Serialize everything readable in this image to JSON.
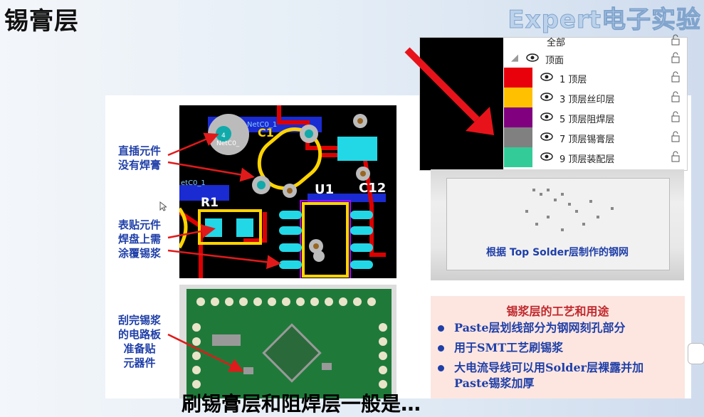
{
  "page_title": "锡膏层",
  "logo_text": "Expert电子实验",
  "slide": {
    "labels": {
      "through_hole": [
        "直插元件",
        "没有焊膏"
      ],
      "smd": [
        "表贴元件",
        "焊盘上需",
        "涂覆锡浆"
      ],
      "pcb_ready": [
        "刮完锡浆",
        "的电路板",
        "准备贴",
        "元器件"
      ]
    },
    "pcb_text": {
      "c1": "C1",
      "netc0_a": "NetC0_1",
      "netc0_b": "etC0_1",
      "pad_num": "4",
      "pad_net": "NetC0_",
      "r1": "R1",
      "u1": "U1",
      "c12": "C12"
    },
    "stencil_caption": "根据 Top Solder层制作的钢网",
    "process": {
      "title": "锡浆层的工艺和用途",
      "bullets": [
        "Paste层划线部分为钢网刻孔部分",
        "用于SMT工艺刷锡浆",
        "大电流导线可以用Solder层裸露并加Paste锡浆加厚"
      ]
    },
    "bottom_text": "刷锡膏层和阻焊层一般是…"
  },
  "layer_panel": {
    "all": "全部",
    "top_face": "顶面",
    "layers": [
      {
        "name": "1 顶层",
        "color": "#e8000b"
      },
      {
        "name": "3 顶层丝印层",
        "color": "#ffc000"
      },
      {
        "name": "5 顶层阻焊层",
        "color": "#800080"
      },
      {
        "name": "7 顶层锡膏层",
        "color": "#808080"
      },
      {
        "name": "9 顶层装配层",
        "color": "#33cc99"
      }
    ]
  },
  "icons": [
    "eye-icon",
    "lock-icon",
    "cursor-icon",
    "arrow-icon"
  ]
}
